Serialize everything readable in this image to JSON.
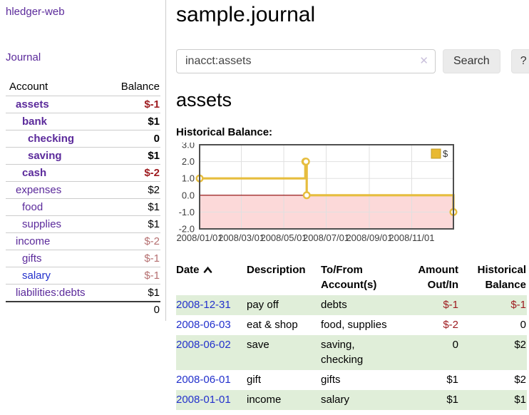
{
  "sidebar": {
    "app_title": "hledger-web",
    "journal_link": "Journal",
    "accounts": {
      "header_account": "Account",
      "header_balance": "Balance",
      "rows": [
        {
          "name": "assets",
          "balance": "$-1",
          "indent": 1,
          "bold": true,
          "blue": false
        },
        {
          "name": "bank",
          "balance": "$1",
          "indent": 2,
          "bold": true,
          "blue": false
        },
        {
          "name": "checking",
          "balance": "0",
          "indent": 3,
          "bold": true,
          "blue": false
        },
        {
          "name": "saving",
          "balance": "$1",
          "indent": 3,
          "bold": true,
          "blue": false
        },
        {
          "name": "cash",
          "balance": "$-2",
          "indent": 2,
          "bold": true,
          "blue": false
        },
        {
          "name": "expenses",
          "balance": "$2",
          "indent": 1,
          "bold": false,
          "blue": false
        },
        {
          "name": "food",
          "balance": "$1",
          "indent": 2,
          "bold": false,
          "blue": false
        },
        {
          "name": "supplies",
          "balance": "$1",
          "indent": 2,
          "bold": false,
          "blue": false
        },
        {
          "name": "income",
          "balance": "$-2",
          "indent": 1,
          "bold": false,
          "blue": false
        },
        {
          "name": "gifts",
          "balance": "$-1",
          "indent": 2,
          "bold": false,
          "blue": false
        },
        {
          "name": "salary",
          "balance": "$-1",
          "indent": 2,
          "bold": false,
          "blue": true
        },
        {
          "name": "liabilities:debts",
          "balance": "$1",
          "indent": 1,
          "bold": false,
          "blue": false
        }
      ],
      "total": "0"
    }
  },
  "main": {
    "title": "sample.journal",
    "search": {
      "value": "inacct:assets",
      "clear_icon": "✕",
      "button_label": "Search",
      "help_label": "?"
    },
    "account_heading": "assets",
    "chart_label": "Historical Balance:"
  },
  "chart_data": {
    "type": "line",
    "title": "Historical Balance",
    "step": true,
    "series": [
      {
        "name": "$",
        "color": "#e6bd3e",
        "points": [
          [
            "2008-01-01",
            1
          ],
          [
            "2008-06-01",
            2
          ],
          [
            "2008-06-02",
            2
          ],
          [
            "2008-06-03",
            0
          ],
          [
            "2008-12-31",
            -1
          ]
        ]
      }
    ],
    "x_ticks": [
      "2008/01/01",
      "2008/03/01",
      "2008/05/01",
      "2008/07/01",
      "2008/09/01",
      "2008/11/01"
    ],
    "y_ticks": [
      3.0,
      2.0,
      1.0,
      0.0,
      -1.0,
      -2.0
    ],
    "xlim": [
      "2008-01-01",
      "2008-12-31"
    ],
    "ylim": [
      -2,
      3
    ],
    "grid": true,
    "legend": {
      "label": "$",
      "position": "top-right",
      "swatch_fill": "#e8b931",
      "swatch_border": "#c09b26"
    },
    "below_zero_fill": "#fcd9d9",
    "zero_line_color": "#8b0000",
    "border_color": "#4f4f4f",
    "grid_color": "#e0e0e0",
    "tick_label_color": "#3c3c3c"
  },
  "register": {
    "headers": {
      "date": "Date",
      "description": "Description",
      "accounts": "To/From Account(s)",
      "amount": "Amount Out/In",
      "balance": "Historical Balance"
    },
    "rows": [
      {
        "date": "2008-12-31",
        "description": "pay off",
        "accounts": "debts",
        "amount": "$-1",
        "balance": "$-1"
      },
      {
        "date": "2008-06-03",
        "description": "eat & shop",
        "accounts": "food, supplies",
        "amount": "$-2",
        "balance": "0"
      },
      {
        "date": "2008-06-02",
        "description": "save",
        "accounts": "saving, checking",
        "amount": "0",
        "balance": "$2"
      },
      {
        "date": "2008-06-01",
        "description": "gift",
        "accounts": "gifts",
        "amount": "$1",
        "balance": "$2"
      },
      {
        "date": "2008-01-01",
        "description": "income",
        "accounts": "salary",
        "amount": "$1",
        "balance": "$1"
      }
    ]
  },
  "colors": {
    "accent_purple": "#5b2a9b",
    "link_blue": "#2230cc",
    "negative_strong": "#9e1c20",
    "negative_soft": "#b56f70",
    "row_green": "#e0eed9",
    "gold": "#e6bd3e"
  }
}
